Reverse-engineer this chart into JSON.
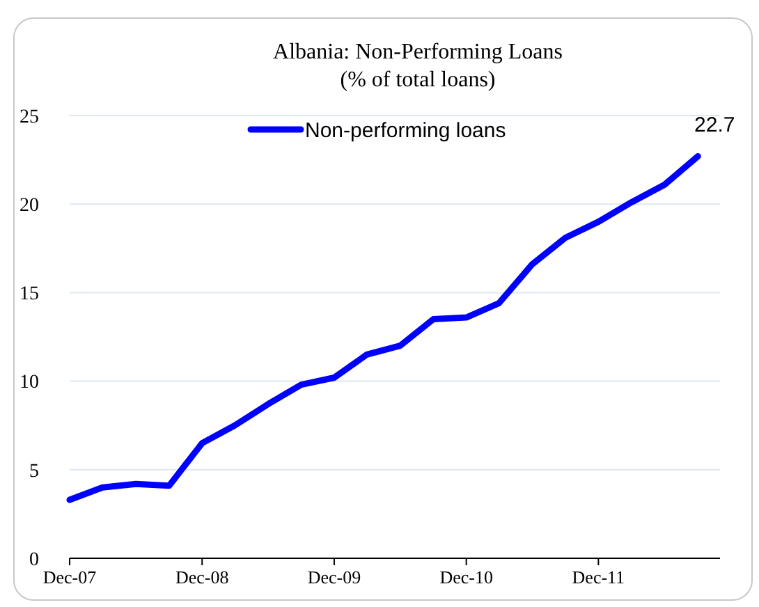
{
  "chart_data": {
    "type": "line",
    "title": "Albania: Non-Performing Loans",
    "subtitle": "(% of total loans)",
    "x": [
      "2007-12",
      "2008-03",
      "2008-06",
      "2008-09",
      "2008-12",
      "2009-03",
      "2009-06",
      "2009-09",
      "2009-12",
      "2010-03",
      "2010-06",
      "2010-09",
      "2010-12",
      "2011-03",
      "2011-06",
      "2011-09",
      "2011-12",
      "2012-03",
      "2012-06",
      "2012-09"
    ],
    "series": [
      {
        "name": "Non-performing loans",
        "color": "#0000ff",
        "values": [
          3.3,
          4.0,
          4.2,
          4.1,
          6.5,
          7.5,
          8.7,
          9.8,
          10.2,
          11.5,
          12.0,
          13.5,
          13.6,
          14.4,
          16.6,
          18.1,
          19.0,
          20.1,
          21.1,
          22.7
        ],
        "value_labels": [
          null,
          null,
          null,
          null,
          null,
          null,
          null,
          null,
          null,
          null,
          null,
          null,
          null,
          null,
          null,
          null,
          null,
          null,
          null,
          "22.7"
        ]
      }
    ],
    "xlim": [
      "2007-12",
      "2012-11"
    ],
    "xticks": [
      {
        "value": "2007-12",
        "label": "Dec-07"
      },
      {
        "value": "2008-12",
        "label": "Dec-08"
      },
      {
        "value": "2009-12",
        "label": "Dec-09"
      },
      {
        "value": "2010-12",
        "label": "Dec-10"
      },
      {
        "value": "2011-12",
        "label": "Dec-11"
      }
    ],
    "ylim": [
      0,
      25
    ],
    "yticks": [
      0,
      5,
      10,
      15,
      20,
      25
    ],
    "grid": "y",
    "legend": "top",
    "marker": "none",
    "line_style": "solid"
  }
}
